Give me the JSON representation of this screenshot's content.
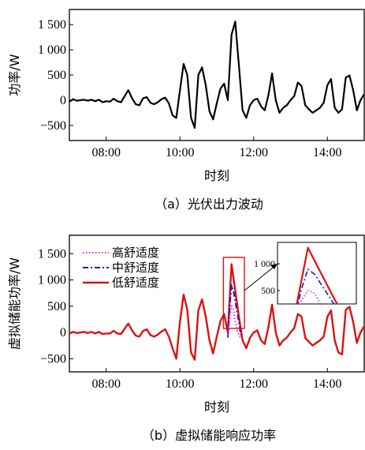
{
  "chart_data": [
    {
      "type": "line",
      "caption": "（a）光伏出力波动",
      "xlabel": "时刻",
      "ylabel": "功率/W",
      "xlim": [
        "07:00",
        "15:00"
      ],
      "ylim": [
        -800,
        1800
      ],
      "xticks": [
        "08:00",
        "10:00",
        "12:00",
        "14:00"
      ],
      "yticks": [
        {
          "v": 1500,
          "label": "1 500"
        },
        {
          "v": 1000,
          "label": "1 000"
        },
        {
          "v": 500,
          "label": "500"
        },
        {
          "v": 0,
          "label": "0"
        },
        {
          "v": -500,
          "label": "−500"
        }
      ],
      "color": "#000000",
      "x_hours": [
        7.0,
        7.1,
        7.2,
        7.3,
        7.4,
        7.5,
        7.6,
        7.7,
        7.8,
        7.9,
        8.0,
        8.1,
        8.2,
        8.3,
        8.4,
        8.5,
        8.6,
        8.7,
        8.8,
        8.9,
        9.0,
        9.1,
        9.2,
        9.3,
        9.4,
        9.5,
        9.6,
        9.7,
        9.8,
        9.9,
        10.0,
        10.1,
        10.2,
        10.3,
        10.4,
        10.5,
        10.6,
        10.7,
        10.8,
        10.9,
        11.0,
        11.1,
        11.2,
        11.3,
        11.4,
        11.5,
        11.6,
        11.7,
        11.8,
        11.9,
        12.0,
        12.1,
        12.2,
        12.3,
        12.4,
        12.5,
        12.6,
        12.7,
        12.8,
        12.9,
        13.0,
        13.1,
        13.2,
        13.3,
        13.4,
        13.5,
        13.6,
        13.7,
        13.8,
        13.9,
        14.0,
        14.1,
        14.2,
        14.3,
        14.4,
        14.5,
        14.6,
        14.7,
        14.8,
        14.9,
        15.0
      ],
      "values": [
        -30,
        20,
        -10,
        0,
        10,
        -10,
        10,
        -20,
        10,
        -40,
        -20,
        -30,
        30,
        -20,
        -40,
        80,
        200,
        40,
        -80,
        -100,
        40,
        60,
        -50,
        -80,
        -40,
        20,
        50,
        -60,
        -300,
        -350,
        200,
        720,
        500,
        -350,
        -550,
        500,
        650,
        300,
        -220,
        -380,
        -60,
        230,
        330,
        0,
        1300,
        1560,
        700,
        -200,
        -350,
        -100,
        0,
        30,
        -120,
        -200,
        100,
        530,
        0,
        -250,
        -150,
        -100,
        0,
        80,
        350,
        280,
        -100,
        -180,
        -250,
        -200,
        -150,
        -50,
        300,
        420,
        -150,
        -250,
        -180,
        450,
        490,
        200,
        -200,
        0,
        120
      ]
    },
    {
      "type": "line",
      "caption": "（b）虚拟储能响应功率",
      "xlabel": "时刻",
      "ylabel": "虚拟储能功率/W",
      "xlim": [
        "07:00",
        "15:00"
      ],
      "ylim": [
        -750,
        1850
      ],
      "xticks": [
        "08:00",
        "10:00",
        "12:00",
        "14:00"
      ],
      "yticks": [
        {
          "v": 1500,
          "label": "1 500"
        },
        {
          "v": 1000,
          "label": "1 000"
        },
        {
          "v": 500,
          "label": "500"
        },
        {
          "v": 0,
          "label": "0"
        },
        {
          "v": -500,
          "label": "−500"
        }
      ],
      "legend_position": "top-left",
      "series": [
        {
          "name": "高舒适度",
          "color": "#dd22dd",
          "style": "dotted",
          "x_hours": [
            11.3,
            11.35,
            11.4,
            11.45,
            11.5,
            11.55,
            11.6,
            11.65
          ],
          "values": [
            -100,
            300,
            500,
            450,
            200,
            50,
            -50,
            -100
          ]
        },
        {
          "name": "中舒适度",
          "color": "#1a1acc",
          "style": "dashdot",
          "x_hours": [
            11.3,
            11.35,
            11.4,
            11.45,
            11.5,
            11.55,
            11.6,
            11.65
          ],
          "values": [
            -100,
            500,
            900,
            800,
            600,
            400,
            200,
            -50
          ]
        },
        {
          "name": "低舒适度",
          "color": "#dd1111",
          "style": "solid",
          "x_hours": [
            7.0,
            7.1,
            7.2,
            7.3,
            7.4,
            7.5,
            7.6,
            7.7,
            7.8,
            7.9,
            8.0,
            8.1,
            8.2,
            8.3,
            8.4,
            8.5,
            8.6,
            8.7,
            8.8,
            8.9,
            9.0,
            9.1,
            9.2,
            9.3,
            9.4,
            9.5,
            9.6,
            9.7,
            9.8,
            9.9,
            10.0,
            10.1,
            10.2,
            10.3,
            10.4,
            10.5,
            10.6,
            10.7,
            10.8,
            10.9,
            11.0,
            11.1,
            11.2,
            11.3,
            11.4,
            11.5,
            11.6,
            11.7,
            11.8,
            11.9,
            12.0,
            12.1,
            12.2,
            12.3,
            12.4,
            12.5,
            12.6,
            12.7,
            12.8,
            12.9,
            13.0,
            13.1,
            13.2,
            13.3,
            13.4,
            13.5,
            13.6,
            13.7,
            13.8,
            13.9,
            14.0,
            14.1,
            14.2,
            14.3,
            14.4,
            14.5,
            14.6,
            14.7,
            14.8,
            14.9,
            15.0
          ],
          "values": [
            -20,
            10,
            -10,
            0,
            10,
            -10,
            10,
            -20,
            10,
            -30,
            -20,
            -20,
            30,
            -20,
            -30,
            70,
            170,
            40,
            -60,
            -80,
            30,
            60,
            -50,
            -80,
            -40,
            20,
            60,
            -80,
            -300,
            -500,
            200,
            720,
            430,
            -380,
            -520,
            420,
            630,
            300,
            -150,
            -400,
            -80,
            220,
            350,
            0,
            1300,
            800,
            300,
            -150,
            -300,
            -100,
            0,
            40,
            -150,
            -220,
            100,
            530,
            0,
            -250,
            -150,
            -100,
            0,
            80,
            350,
            300,
            -100,
            -180,
            -250,
            -200,
            -150,
            -80,
            300,
            420,
            -150,
            -380,
            -420,
            430,
            490,
            200,
            -200,
            0,
            120
          ]
        }
      ],
      "inset": {
        "xlim": [
          11.18,
          11.75
        ],
        "ylim": [
          250,
          1400
        ],
        "yticks": [
          {
            "v": 1000,
            "label": "1 000"
          },
          {
            "v": 500,
            "label": "500"
          }
        ]
      }
    }
  ]
}
